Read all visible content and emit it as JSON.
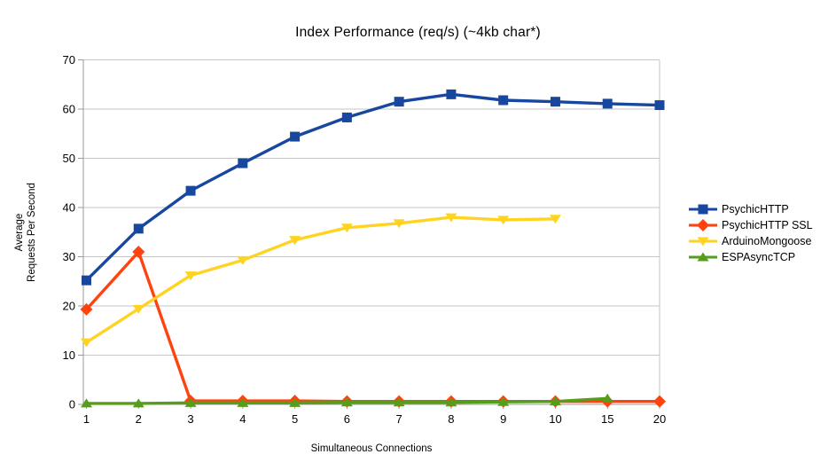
{
  "chart_data": {
    "type": "line",
    "title": "Index Performance (req/s) (~4kb char*)",
    "xlabel": "Simultaneous Connections",
    "ylabel": "Average Requests Per Second",
    "ylabel_lines": [
      "Average",
      "Requests Per Second"
    ],
    "categories": [
      "1",
      "2",
      "3",
      "4",
      "5",
      "6",
      "7",
      "8",
      "9",
      "10",
      "15",
      "20"
    ],
    "y_ticks": [
      0,
      10,
      20,
      30,
      40,
      50,
      60,
      70
    ],
    "ylim": [
      0,
      70
    ],
    "grid": "horizontal",
    "legend_position": "right",
    "colors": {
      "grid": "#c6c6c6",
      "axis": "#9a9a9a",
      "background": "#ffffff"
    },
    "series": [
      {
        "name": "PsychicHTTP",
        "color": "#17479E",
        "marker": "square",
        "values": [
          25.2,
          35.7,
          43.4,
          49.0,
          54.4,
          58.3,
          61.5,
          63.0,
          61.8,
          61.5,
          61.1,
          60.8
        ]
      },
      {
        "name": "PsychicHTTP SSL",
        "color": "#FF420E",
        "marker": "diamond",
        "values": [
          19.3,
          31.0,
          0.7,
          0.7,
          0.7,
          0.6,
          0.6,
          0.6,
          0.6,
          0.6,
          0.6,
          0.6
        ]
      },
      {
        "name": "ArduinoMongoose",
        "color": "#FFD320",
        "marker": "triangle-down",
        "values": [
          12.6,
          19.4,
          26.2,
          29.3,
          33.4,
          35.9,
          36.8,
          38.0,
          37.5,
          37.7,
          null,
          null
        ]
      },
      {
        "name": "ESPAsyncTCP",
        "color": "#579D1C",
        "marker": "triangle-up",
        "values": [
          0.2,
          0.2,
          0.3,
          0.3,
          0.3,
          0.4,
          0.4,
          0.4,
          0.5,
          0.6,
          1.2,
          null
        ]
      }
    ]
  }
}
